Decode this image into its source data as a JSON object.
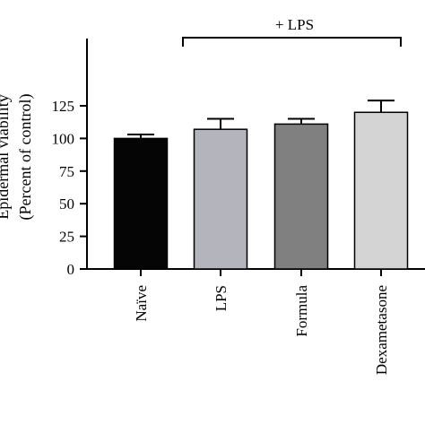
{
  "chart_data": {
    "type": "bar",
    "title": "",
    "xlabel": "",
    "ylabel_line1": "Epidermal viability",
    "ylabel_line2": "(Percent of control)",
    "ylim": [
      0,
      140
    ],
    "yticks": [
      0,
      25,
      50,
      75,
      100,
      125
    ],
    "categories": [
      "Naïve",
      "LPS",
      "Formula",
      "Dexametasone"
    ],
    "values": [
      100,
      107,
      111,
      120
    ],
    "errors": [
      3,
      8,
      4,
      9
    ],
    "bar_colors": [
      "#050505",
      "#b4b4bc",
      "#808080",
      "#d4d4d4"
    ],
    "bracket_label": "+ LPS",
    "bracket_span": [
      "LPS",
      "Dexametasone"
    ],
    "grid": false,
    "legend": "none"
  }
}
